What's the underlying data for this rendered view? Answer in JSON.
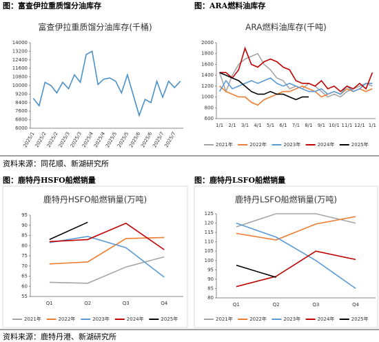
{
  "headers": [
    "图：富查伊拉重质馏分油库存",
    "图：ARA燃料油库存",
    "图：鹿特丹HSFO船燃销量",
    "图：鹿特丹LSFO船燃销量"
  ],
  "sources": [
    "资料来源：同花顺、新湖研究所",
    "资料来源：鹿特丹港、新湖研究所"
  ],
  "chart_data": [
    {
      "type": "line",
      "title": "富查伊拉重质馏分油库存(千桶)",
      "categories": [
        "2025/1",
        null,
        "2025/2",
        null,
        "2025/2",
        null,
        "2025/3",
        null,
        "2025/3",
        null,
        "2025/4",
        null,
        "2025/4",
        null,
        "2025/5",
        null,
        "2025/5",
        null,
        "2025/6",
        null,
        "2025/6",
        null,
        "2025/7",
        null,
        "2025/7",
        null
      ],
      "series": [
        {
          "name": null,
          "color": "#4a90c8",
          "values": [
            8800,
            8100,
            10300,
            10000,
            9300,
            10300,
            9700,
            11000,
            10300,
            12900,
            13200,
            10100,
            10600,
            10700,
            10400,
            9300,
            11000,
            9100,
            7200,
            8700,
            8400,
            10400,
            8900,
            10400,
            9800,
            10400
          ]
        }
      ],
      "ylim": [
        6000,
        14000
      ],
      "yticks": [
        6000,
        6800,
        7600,
        8400,
        9200,
        10000,
        10800,
        11600,
        12400,
        13200,
        14000
      ],
      "grid": false,
      "legend": false,
      "rotate_x": true
    },
    {
      "type": "line",
      "title": "ARA燃料油库存(千吨)",
      "categories": [
        "1/1",
        null,
        "2/1",
        null,
        "3/1",
        null,
        "4/1",
        null,
        "5/1",
        null,
        "6/1",
        null,
        "7/1",
        null,
        "8/1",
        null,
        "9/1",
        null,
        "10/1",
        null,
        "11/1",
        null,
        "12/1",
        null,
        "1/1"
      ],
      "series": [
        {
          "name": "2021年",
          "color": "#a5a5a5",
          "values": [
            1450,
            1100,
            1400,
            1600,
            1700,
            1750,
            1800,
            1600,
            1500,
            1350,
            1300,
            1150,
            1200,
            1150,
            1250,
            1200,
            1100,
            1000,
            1050,
            1000,
            1100,
            1150,
            1200,
            1250,
            1200
          ]
        },
        {
          "name": "2022年",
          "color": "#ed7d31",
          "values": [
            1200,
            1100,
            1050,
            1000,
            1000,
            900,
            850,
            950,
            1000,
            1050,
            1100,
            1100,
            1150,
            1200,
            1150,
            1100,
            1000,
            1050,
            1100,
            1050,
            1150,
            1100,
            1150,
            1100,
            1150
          ]
        },
        {
          "name": "2023年",
          "color": "#5b9bd5",
          "values": [
            1100,
            1300,
            1150,
            1200,
            1250,
            1300,
            1250,
            1300,
            1350,
            1250,
            1200,
            1250,
            1200,
            1150,
            1100,
            1100,
            1150,
            1050,
            1100,
            1050,
            1200,
            1100,
            1150,
            1250,
            1250
          ]
        },
        {
          "name": "2024年",
          "color": "#c00000",
          "values": [
            1450,
            1450,
            1350,
            1500,
            1900,
            1600,
            1550,
            1650,
            1700,
            1650,
            1550,
            1500,
            1300,
            1250,
            1250,
            1200,
            1300,
            1150,
            1200,
            1100,
            1200,
            1150,
            1250,
            1150,
            1450
          ]
        },
        {
          "name": "2025年",
          "color": "#000000",
          "values": [
            1450,
            1400,
            1350,
            1300,
            1200,
            1100,
            1050,
            1050,
            1100,
            1050,
            1050,
            1000,
            950,
            1000,
            1000,
            null,
            null,
            null,
            null,
            null,
            null,
            null,
            null,
            null,
            null
          ]
        }
      ],
      "ylim": [
        600,
        2000
      ],
      "yticks": [
        600,
        800,
        1000,
        1200,
        1400,
        1600,
        1800,
        2000
      ],
      "grid": false,
      "legend": true,
      "rotate_x": false
    },
    {
      "type": "line",
      "title": "鹿特丹HSFO船燃销量(万吨)",
      "categories": [
        "Q1",
        "Q2",
        "Q3",
        "Q4"
      ],
      "series": [
        {
          "name": "2021年",
          "color": "#a5a5a5",
          "values": [
            62,
            61.5,
            69.5,
            74.5
          ]
        },
        {
          "name": "2022年",
          "color": "#ed7d31",
          "values": [
            71,
            72,
            83.5,
            84
          ]
        },
        {
          "name": "2023年",
          "color": "#5b9bd5",
          "values": [
            81.5,
            84.5,
            79,
            64.5
          ]
        },
        {
          "name": "2024年",
          "color": "#c00000",
          "values": [
            82,
            83,
            91,
            78
          ]
        },
        {
          "name": "2025年",
          "color": "#000000",
          "values": [
            83,
            91.5,
            null,
            null
          ]
        }
      ],
      "ylim": [
        55,
        95
      ],
      "yticks": [
        55,
        60,
        65,
        70,
        75,
        80,
        85,
        90,
        95
      ],
      "grid": false,
      "legend": true,
      "rotate_x": false
    },
    {
      "type": "line",
      "title": "鹿特丹LSFO船燃销量(万吨)",
      "categories": [
        "Q1",
        "Q2",
        "Q3",
        "Q4"
      ],
      "series": [
        {
          "name": "2021年",
          "color": "#a5a5a5",
          "values": [
            118,
            125,
            125,
            120
          ]
        },
        {
          "name": "2022年",
          "color": "#ed7d31",
          "values": [
            114.5,
            111,
            119.5,
            123.5
          ]
        },
        {
          "name": "2023年",
          "color": "#5b9bd5",
          "values": [
            120,
            112.5,
            100,
            85
          ]
        },
        {
          "name": "2024年",
          "color": "#c00000",
          "values": [
            86,
            91.5,
            105,
            100.5
          ]
        },
        {
          "name": "2025年",
          "color": "#000000",
          "values": [
            97.5,
            91,
            null,
            null
          ]
        }
      ],
      "ylim": [
        80,
        125
      ],
      "yticks": [
        80,
        85,
        90,
        95,
        100,
        105,
        110,
        115,
        120,
        125
      ],
      "grid": false,
      "legend": true,
      "rotate_x": false
    }
  ]
}
